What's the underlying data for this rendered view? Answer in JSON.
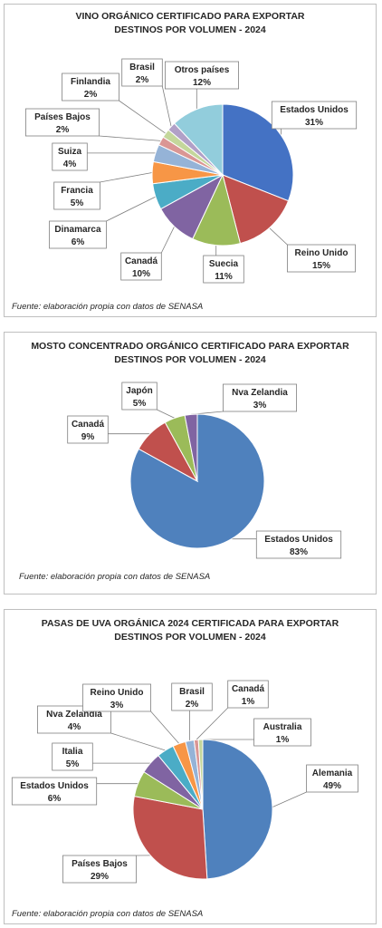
{
  "chart_data": [
    {
      "type": "pie",
      "title": "VINO ORGÁNICO CERTIFICADO PARA EXPORTAR",
      "subtitle": "DESTINOS POR VOLUMEN - 2024",
      "source": "Fuente: elaboración propia con datos de SENASA",
      "slices": [
        {
          "label": "Estados Unidos",
          "pct": "31%",
          "value": 31,
          "color": "#4472c4"
        },
        {
          "label": "Reino Unido",
          "pct": "15%",
          "value": 15,
          "color": "#c0504d"
        },
        {
          "label": "Suecia",
          "pct": "11%",
          "value": 11,
          "color": "#9bbb59"
        },
        {
          "label": "Canadá",
          "pct": "10%",
          "value": 10,
          "color": "#8064a2"
        },
        {
          "label": "Dinamarca",
          "pct": "6%",
          "value": 6,
          "color": "#4bacc6"
        },
        {
          "label": "Francia",
          "pct": "5%",
          "value": 5,
          "color": "#f79646"
        },
        {
          "label": "Suiza",
          "pct": "4%",
          "value": 4,
          "color": "#95b3d7"
        },
        {
          "label": "Países Bajos",
          "pct": "2%",
          "value": 2,
          "color": "#da9694"
        },
        {
          "label": "Finlandia",
          "pct": "2%",
          "value": 2,
          "color": "#c4d79b"
        },
        {
          "label": "Brasil",
          "pct": "2%",
          "value": 2,
          "color": "#b1a0c7"
        },
        {
          "label": "Otros países",
          "pct": "12%",
          "value": 12,
          "color": "#92cddc"
        }
      ]
    },
    {
      "type": "pie",
      "title": "MOSTO CONCENTRADO ORGÁNICO CERTIFICADO PARA EXPORTAR",
      "subtitle": "DESTINOS POR VOLUMEN - 2024",
      "source": "Fuente: elaboración propia con datos de SENASA",
      "slices": [
        {
          "label": "Estados Unidos",
          "pct": "83%",
          "value": 83,
          "color": "#4f81bd"
        },
        {
          "label": "Canadá",
          "pct": "9%",
          "value": 9,
          "color": "#c0504d"
        },
        {
          "label": "Japón",
          "pct": "5%",
          "value": 5,
          "color": "#9bbb59"
        },
        {
          "label": "Nva Zelandia",
          "pct": "3%",
          "value": 3,
          "color": "#8064a2"
        }
      ]
    },
    {
      "type": "pie",
      "title": "PASAS DE UVA ORGÁNICA 2024 CERTIFICADA PARA EXPORTAR",
      "subtitle": "DESTINOS POR VOLUMEN - 2024",
      "source": "Fuente: elaboración propia con datos de SENASA",
      "slices": [
        {
          "label": "Alemania",
          "pct": "49%",
          "value": 49,
          "color": "#4f81bd"
        },
        {
          "label": "Países Bajos",
          "pct": "29%",
          "value": 29,
          "color": "#c0504d"
        },
        {
          "label": "Estados Unidos",
          "pct": "6%",
          "value": 6,
          "color": "#9bbb59"
        },
        {
          "label": "Italia",
          "pct": "5%",
          "value": 5,
          "color": "#8064a2"
        },
        {
          "label": "Nva Zelandia",
          "pct": "4%",
          "value": 4,
          "color": "#4bacc6"
        },
        {
          "label": "Reino Unido",
          "pct": "3%",
          "value": 3,
          "color": "#f79646"
        },
        {
          "label": "Brasil",
          "pct": "2%",
          "value": 2,
          "color": "#95b3d7"
        },
        {
          "label": "Canadá",
          "pct": "1%",
          "value": 1,
          "color": "#da9694"
        },
        {
          "label": "Australia",
          "pct": "1%",
          "value": 1,
          "color": "#c4d79b"
        }
      ]
    }
  ]
}
